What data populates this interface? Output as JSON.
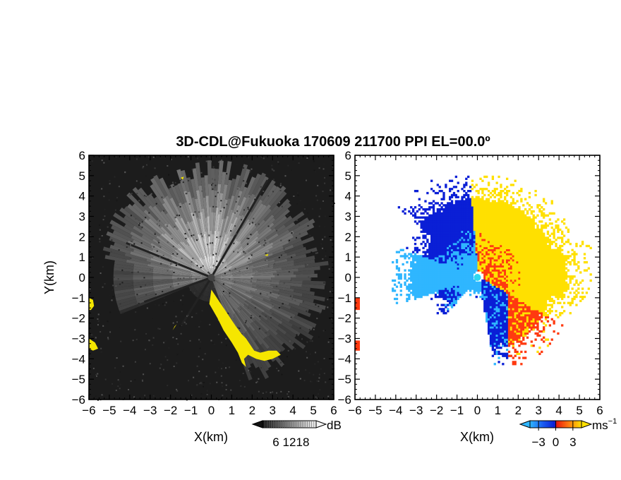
{
  "title": "3D-CDL@Fukuoka 170609 211700 PPI EL=00.0º",
  "chart_data": [
    {
      "type": "heatmap",
      "quantity": "reflectivity / SNR (grayscale)",
      "xlabel": "X(km)",
      "ylabel": "Y(km)",
      "xlim": [
        -6,
        6
      ],
      "ylim": [
        -6,
        6
      ],
      "x_ticks": [
        -6,
        -5,
        -4,
        -3,
        -2,
        -1,
        0,
        1,
        2,
        3,
        4,
        5,
        6
      ],
      "y_ticks": [
        -6,
        -5,
        -4,
        -3,
        -2,
        -1,
        0,
        1,
        2,
        3,
        4,
        5,
        6
      ],
      "colorbar": {
        "unit": "dB",
        "ticks": [
          6,
          12,
          18
        ],
        "range": [
          0,
          24
        ],
        "colormap": "grayscale"
      },
      "overlay_color": "#f5e600",
      "background_color": "#1c1c1c",
      "grid": false
    },
    {
      "type": "heatmap",
      "quantity": "Doppler velocity",
      "xlabel": "X(km)",
      "ylabel": "",
      "xlim": [
        -6,
        6
      ],
      "ylim": [
        -6,
        6
      ],
      "x_ticks": [
        -6,
        -5,
        -4,
        -3,
        -2,
        -1,
        0,
        1,
        2,
        3,
        4,
        5,
        6
      ],
      "y_ticks": [
        -6,
        -5,
        -4,
        -3,
        -2,
        -1,
        0,
        1,
        2,
        3,
        4,
        5,
        6
      ],
      "colorbar": {
        "unit": "ms",
        "unit_exponent": "−1",
        "ticks": [
          -3,
          0,
          3
        ],
        "range": [
          -4.5,
          4.5
        ],
        "colormap": "blue-red-yellow"
      },
      "colors": {
        "negative_strong": "#0a1fd6",
        "negative_weak": "#2fb6ff",
        "positive_weak": "#ff3a10",
        "positive_strong": "#ffe000"
      },
      "grid": false
    }
  ]
}
